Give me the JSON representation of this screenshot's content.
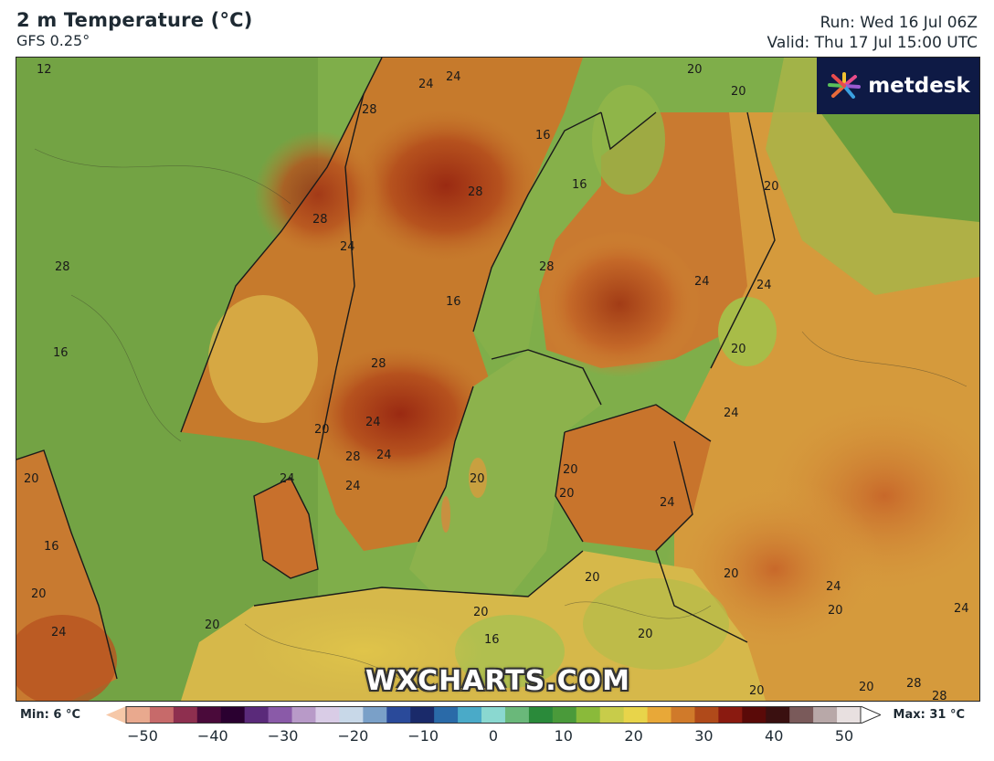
{
  "header": {
    "title": "2 m Temperature (°C)",
    "model": "GFS 0.25°",
    "run": "Run: Wed 16 Jul 06Z",
    "valid": "Valid: Thu 17 Jul 15:00 UTC"
  },
  "logo": {
    "text": "metdesk",
    "icon": "metdesk-starburst-icon"
  },
  "watermark": "WXCHARTS.COM",
  "map": {
    "region": "Scandinavia and Baltic Sea",
    "contour_labels": [
      "12",
      "24",
      "24",
      "20",
      "20",
      "28",
      "16",
      "16",
      "28",
      "28",
      "20",
      "28",
      "24",
      "24",
      "28",
      "16",
      "16",
      "24",
      "20",
      "28",
      "24",
      "24",
      "20",
      "28",
      "24",
      "20",
      "20",
      "24",
      "24",
      "20",
      "24",
      "20",
      "20",
      "16",
      "20",
      "20",
      "20",
      "24",
      "20",
      "24",
      "20",
      "16",
      "20",
      "20",
      "28",
      "24",
      "28",
      "20"
    ]
  },
  "legend": {
    "min_label": "Min: 6 °C",
    "max_label": "Max: 31 °C",
    "ticks": [
      "−50",
      "−40",
      "−30",
      "−20",
      "−10",
      "0",
      "10",
      "20",
      "30",
      "40",
      "50"
    ],
    "range": [
      -50,
      50
    ],
    "colors": [
      "#f6c8a8",
      "#e9a98e",
      "#c76a6a",
      "#8e2f4f",
      "#4a0a3a",
      "#2a0030",
      "#5a2a7a",
      "#8a5aa8",
      "#b89ac8",
      "#d9cce6",
      "#c8d8e8",
      "#7aa0c8",
      "#2a4a9a",
      "#1a2a6a",
      "#2a6aa8",
      "#4aaac8",
      "#8ad8d0",
      "#6ab87a",
      "#2a8a3a",
      "#4a9a3a",
      "#8aba3a",
      "#c8cc4a",
      "#e8d44a",
      "#e8a838",
      "#d07a2a",
      "#b04a1a",
      "#8a1a10",
      "#5a0a08",
      "#3a1010",
      "#7a5a5a",
      "#b8a8a8",
      "#e8e0e0",
      "#ffffff"
    ]
  }
}
